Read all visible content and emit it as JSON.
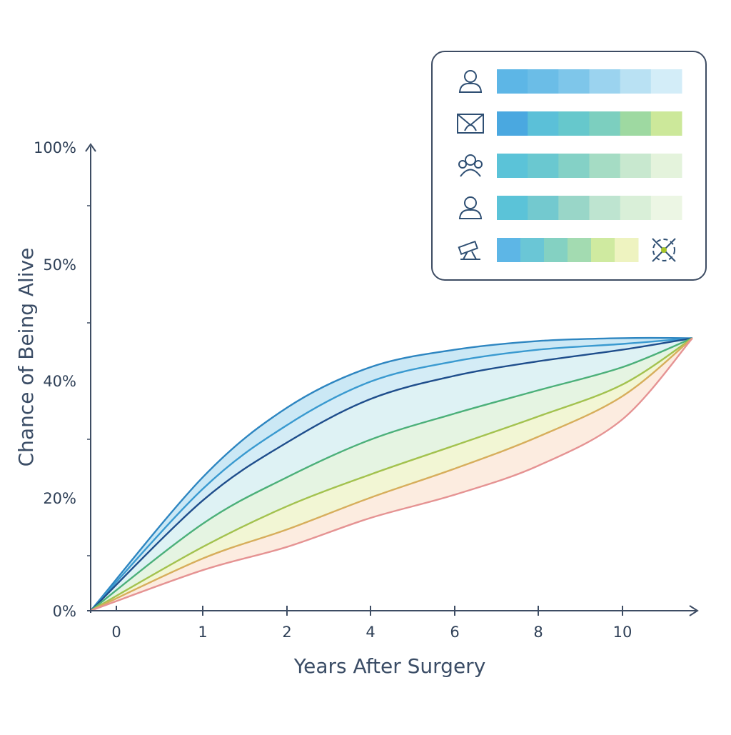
{
  "chart_data": {
    "type": "area",
    "title": "",
    "xlabel": "Years After Surgery",
    "ylabel": "Chance of Being Alive",
    "y_tick_labels": [
      "0%",
      "20%",
      "40%",
      "50%",
      "100%"
    ],
    "x_tick_labels": [
      "0",
      "1",
      "2",
      "4",
      "6",
      "8",
      "10"
    ],
    "grid": false,
    "legend_position": "top-right",
    "series": [
      {
        "color": "#2e86c1",
        "points": [
          [
            "0",
            0
          ],
          [
            "1",
            23
          ],
          [
            "2",
            35
          ],
          [
            "4",
            42
          ],
          [
            "6",
            45
          ],
          [
            "8",
            46.5
          ],
          [
            "10",
            47
          ],
          [
            "end",
            47
          ]
        ]
      },
      {
        "color": "#3a9ad0",
        "points": [
          [
            "0",
            0
          ],
          [
            "1",
            21
          ],
          [
            "2",
            32
          ],
          [
            "4",
            39.5
          ],
          [
            "6",
            43
          ],
          [
            "8",
            45
          ],
          [
            "10",
            46
          ],
          [
            "end",
            47
          ]
        ]
      },
      {
        "color": "#1f4e8c",
        "points": [
          [
            "0",
            0
          ],
          [
            "1",
            19
          ],
          [
            "2",
            29
          ],
          [
            "4",
            36.5
          ],
          [
            "6",
            40.5
          ],
          [
            "8",
            43
          ],
          [
            "10",
            45
          ],
          [
            "end",
            47
          ]
        ]
      },
      {
        "color": "#4cb07a",
        "points": [
          [
            "0",
            0
          ],
          [
            "1",
            15
          ],
          [
            "2",
            23
          ],
          [
            "4",
            29.5
          ],
          [
            "6",
            34
          ],
          [
            "8",
            38
          ],
          [
            "10",
            42
          ],
          [
            "end",
            47
          ]
        ]
      },
      {
        "color": "#a3c24f",
        "points": [
          [
            "0",
            0
          ],
          [
            "1",
            11
          ],
          [
            "2",
            18
          ],
          [
            "4",
            23.5
          ],
          [
            "6",
            28.5
          ],
          [
            "8",
            33.5
          ],
          [
            "10",
            39
          ],
          [
            "end",
            47
          ]
        ]
      },
      {
        "color": "#d7ae5c",
        "points": [
          [
            "0",
            0
          ],
          [
            "1",
            9
          ],
          [
            "2",
            14
          ],
          [
            "4",
            19.5
          ],
          [
            "6",
            24.5
          ],
          [
            "8",
            30
          ],
          [
            "10",
            37
          ],
          [
            "end",
            47
          ]
        ]
      },
      {
        "color": "#e59393",
        "points": [
          [
            "0",
            0
          ],
          [
            "1",
            7
          ],
          [
            "2",
            11
          ],
          [
            "4",
            16
          ],
          [
            "6",
            20
          ],
          [
            "8",
            25
          ],
          [
            "10",
            33
          ],
          [
            "end",
            47
          ]
        ]
      }
    ],
    "bands": [
      {
        "from": 0,
        "to": 1,
        "color": "#b9e0f2"
      },
      {
        "from": 1,
        "to": 2,
        "color": "#c5e6f3"
      },
      {
        "from": 2,
        "to": 3,
        "color": "#d3eef0"
      },
      {
        "from": 3,
        "to": 4,
        "color": "#dcf0d8"
      },
      {
        "from": 4,
        "to": 5,
        "color": "#eef3c6"
      },
      {
        "from": 5,
        "to": 6,
        "color": "#fbe6d6"
      }
    ]
  },
  "legend": {
    "rows": [
      {
        "icon": "person-icon",
        "swatches": [
          "#5db6e6",
          "#6bbde7",
          "#7ec6ea",
          "#9bd3ef",
          "#b9e1f3",
          "#d3edf8"
        ]
      },
      {
        "icon": "envelope-icon",
        "swatches": [
          "#4aa8e0",
          "#5bc0d8",
          "#66c8cc",
          "#7ccfbf",
          "#9ed9a1",
          "#cce89a"
        ]
      },
      {
        "icon": "group-icon",
        "swatches": [
          "#5bc3d8",
          "#6ac8d0",
          "#84d1c6",
          "#a5dcc4",
          "#c8e8cf",
          "#e4f3dc"
        ]
      },
      {
        "icon": "person-outline-icon",
        "swatches": [
          "#5bc3d8",
          "#73c9cf",
          "#99d6c8",
          "#bee4d0",
          "#d9efd8",
          "#ecf6e4"
        ]
      },
      {
        "icon": "telescope-icon",
        "swatches": [
          "#5db6e6",
          "#6ac6d6",
          "#84d1c2",
          "#a3dbb1",
          "#cfeaa0",
          "#eef3c0"
        ],
        "end_icon": "crosshair-icon"
      }
    ]
  }
}
